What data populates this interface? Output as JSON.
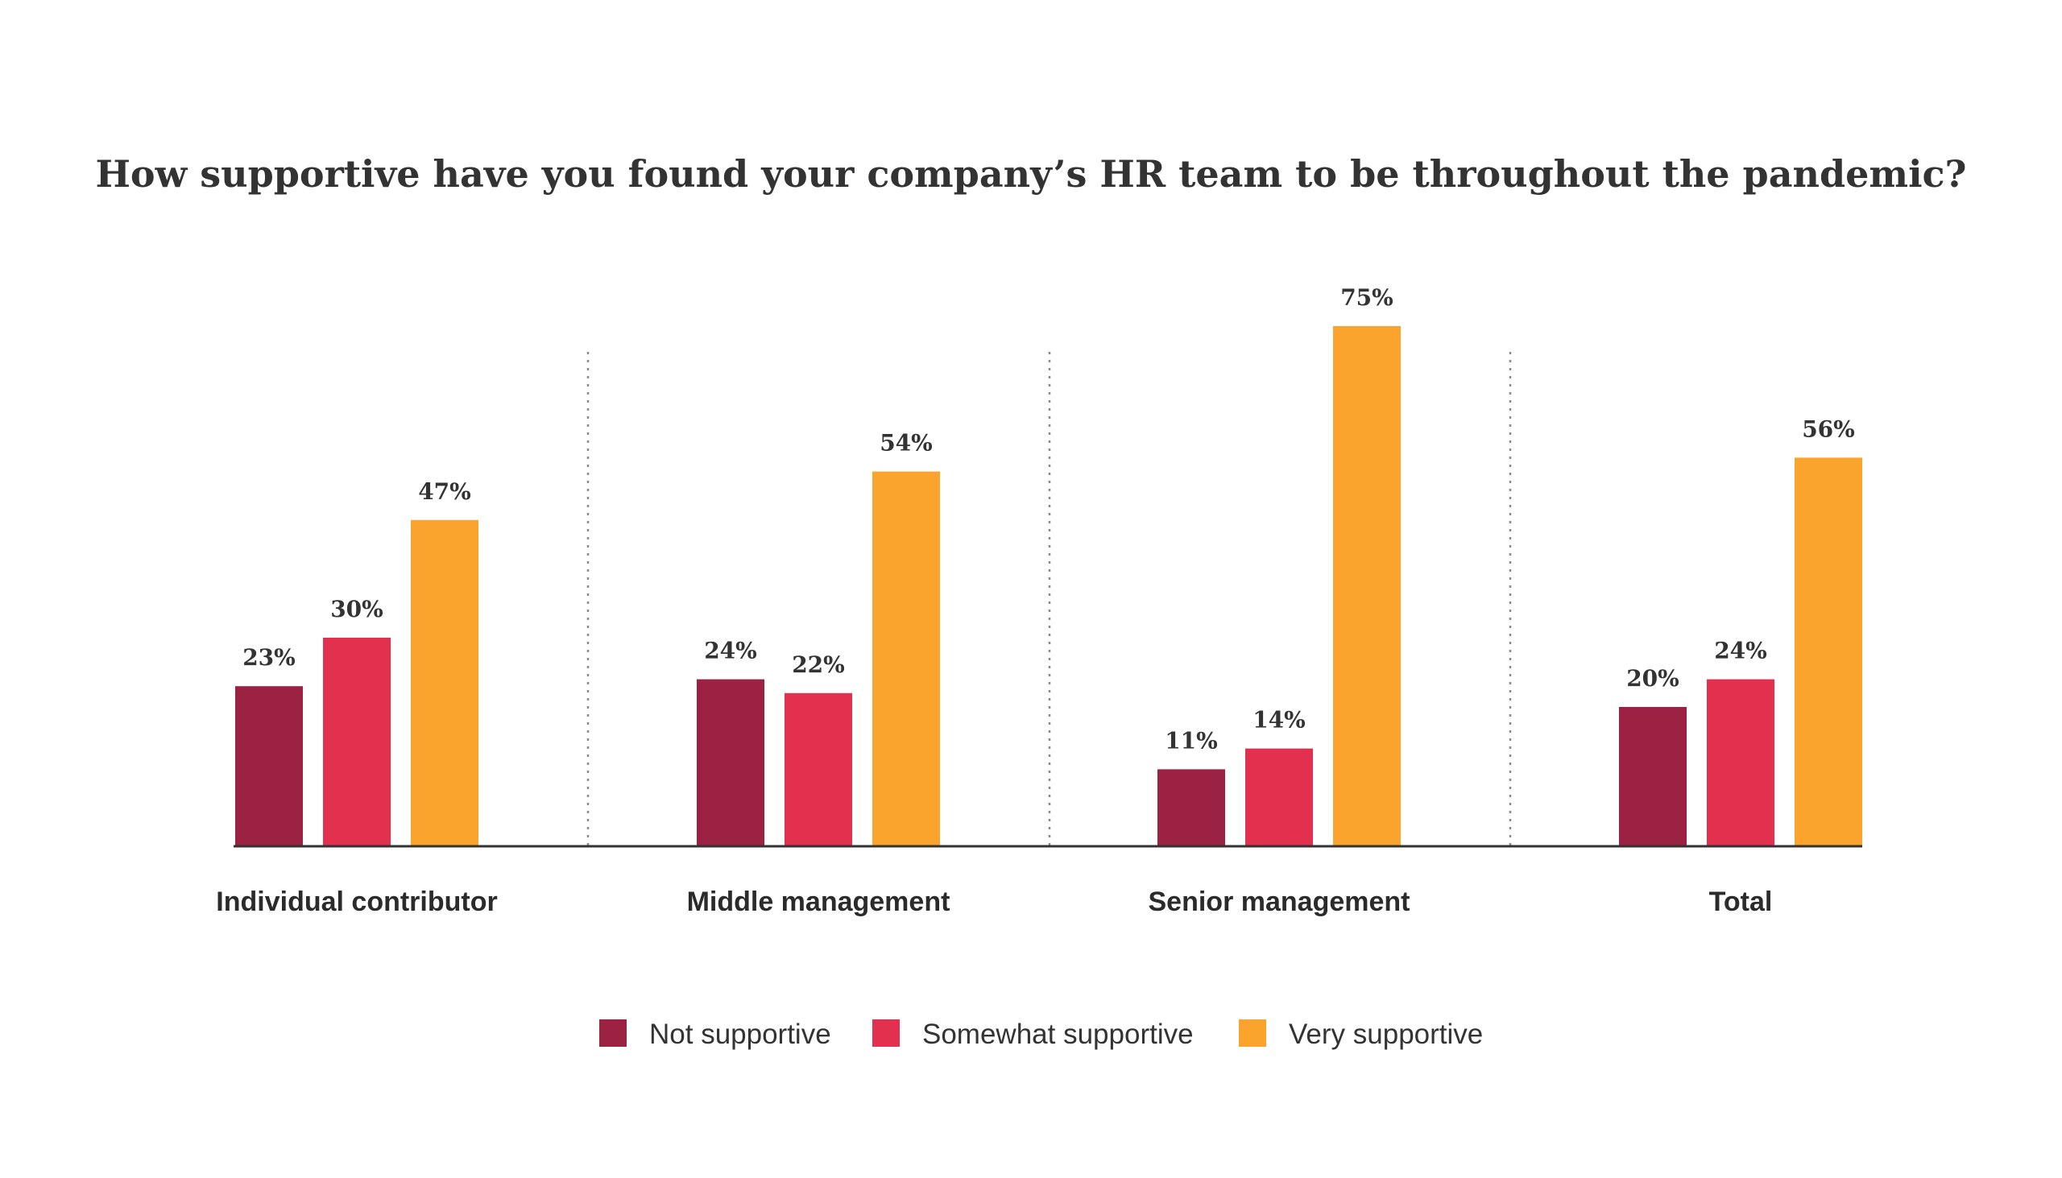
{
  "chart_data": {
    "type": "bar",
    "title": "How supportive have you found your company’s HR team to be throughout the pandemic?",
    "categories": [
      "Individual contributor",
      "Middle management",
      "Senior management",
      "Total"
    ],
    "series": [
      {
        "name": "Not supportive",
        "color": "#9B2242",
        "values": [
          23,
          24,
          11,
          20
        ],
        "labels": [
          "23%",
          "24%",
          "11%",
          "20%"
        ]
      },
      {
        "name": "Somewhat supportive",
        "color": "#E3304F",
        "values": [
          30,
          22,
          14,
          24
        ],
        "labels": [
          "30%",
          "22%",
          "14%",
          "24%"
        ]
      },
      {
        "name": "Very supportive",
        "color": "#FBA42D",
        "values": [
          47,
          54,
          75,
          56
        ],
        "labels": [
          "47%",
          "54%",
          "75%",
          "56%"
        ]
      }
    ],
    "ylim": [
      0,
      100
    ],
    "grid": false,
    "group_separators": "dotted",
    "legend_position": "bottom-center",
    "axis_color": "#333333"
  }
}
